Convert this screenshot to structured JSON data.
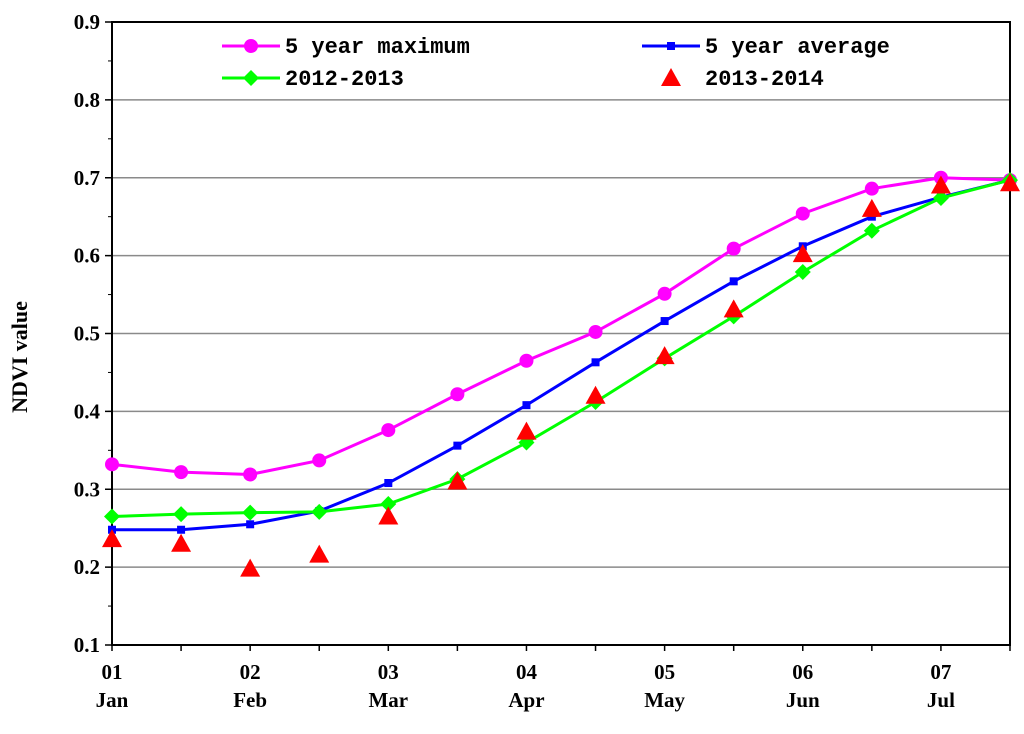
{
  "chart_data": {
    "type": "line",
    "title": "",
    "xlabel": "",
    "ylabel": "NDVI value",
    "ylim": [
      0.1,
      0.9
    ],
    "yticks": [
      "0.1",
      "0.2",
      "0.3",
      "0.4",
      "0.5",
      "0.6",
      "0.7",
      "0.8",
      "0.9"
    ],
    "xlim": [
      0,
      13
    ],
    "xticks": [
      {
        "x": 0,
        "num": "01",
        "month": "Jan"
      },
      {
        "x": 2,
        "num": "02",
        "month": "Feb"
      },
      {
        "x": 4,
        "num": "03",
        "month": "Mar"
      },
      {
        "x": 6,
        "num": "04",
        "month": "Apr"
      },
      {
        "x": 8,
        "num": "05",
        "month": "May"
      },
      {
        "x": 10,
        "num": "06",
        "month": "Jun"
      },
      {
        "x": 12,
        "num": "07",
        "month": "Jul"
      }
    ],
    "grid": true,
    "legend_position": "top",
    "x": [
      0,
      1,
      2,
      3,
      4,
      5,
      6,
      7,
      8,
      9,
      10,
      11,
      12,
      13
    ],
    "series": [
      {
        "name": "5 year maximum",
        "color": "#ff00ff",
        "marker": "circle",
        "values": [
          0.332,
          0.322,
          0.319,
          0.337,
          0.376,
          0.422,
          0.465,
          0.502,
          0.551,
          0.609,
          0.654,
          0.686,
          0.7,
          0.697
        ]
      },
      {
        "name": "5 year average",
        "color": "#0000ff",
        "marker": "square",
        "values": [
          0.248,
          0.248,
          0.255,
          0.272,
          0.308,
          0.356,
          0.408,
          0.463,
          0.516,
          0.567,
          0.612,
          0.65,
          0.675,
          0.697
        ]
      },
      {
        "name": "2012-2013",
        "color": "#00ff00",
        "marker": "diamond",
        "values": [
          0.265,
          0.268,
          0.27,
          0.271,
          0.281,
          0.313,
          0.36,
          0.412,
          0.468,
          0.522,
          0.579,
          0.632,
          0.674,
          0.697
        ]
      },
      {
        "name": "2013-2014",
        "color": "#ff0000",
        "marker": "triangle",
        "line": false,
        "values": [
          0.236,
          0.23,
          0.198,
          0.216,
          0.265,
          0.31,
          0.374,
          0.42,
          0.471,
          0.531,
          0.602,
          0.66,
          0.69,
          0.693
        ]
      }
    ]
  }
}
